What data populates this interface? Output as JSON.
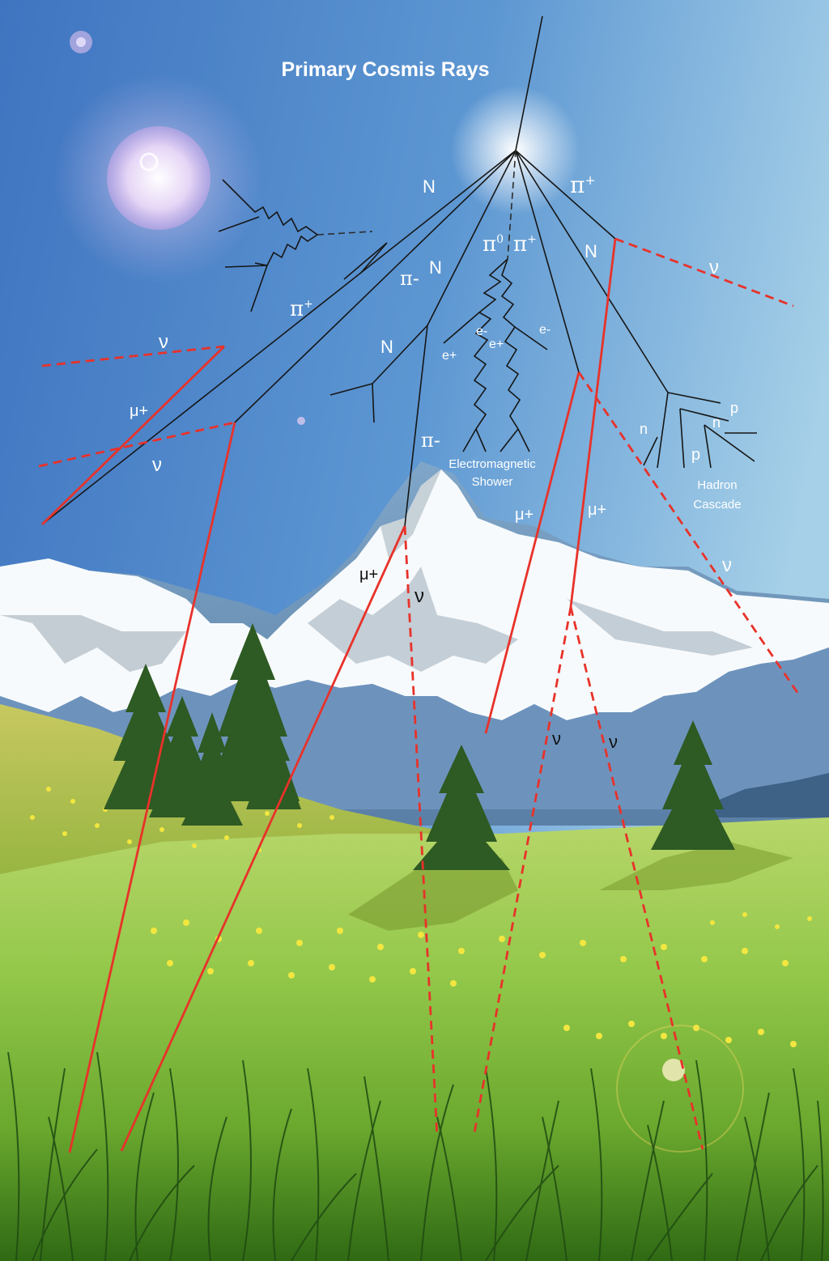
{
  "title": "Primary Cosmis Rays",
  "labels": {
    "n1": "N",
    "pi_plus_top": "π",
    "pi_plus_top_sup": "+",
    "pi0": "π",
    "pi0_sup": "0",
    "pi_plus_mid": "π",
    "pi_plus_mid_sup": "+",
    "n2": "N",
    "n3": "N",
    "pi_minus_1": "π-",
    "pi_plus_left": "π",
    "pi_plus_left_sup": "+",
    "nu_left_1": "ν",
    "nu_left_2": "ν",
    "nu_right_top": "ν",
    "mu_left": "μ+",
    "n4": "N",
    "e_plus_1": "e+",
    "e_minus_1": "e-",
    "e_plus_2": "e+",
    "e_minus_2": "e-",
    "pi_minus_2": "π-",
    "em_shower_1": "Electromagnetic",
    "em_shower_2": "Shower",
    "hadron_1": "Hadron",
    "hadron_2": "Cascade",
    "n_small_1": "n",
    "n_small_2": "n",
    "p_small_1": "p",
    "p_small_2": "p",
    "mu_mid_1": "μ+",
    "mu_mid_2": "μ+",
    "nu_right_mid": "ν",
    "mu_mountain": "μ+",
    "nu_mountain": "ν",
    "nu_low_1": "ν",
    "nu_low_2": "ν"
  },
  "colors": {
    "sky_top": "#3f79c4",
    "sky_bottom": "#9cc8e4",
    "muon_track": "#e8322a",
    "hadron_track": "#161616",
    "snow": "#ffffff",
    "grass": "#8cc63f",
    "flowers": "#f2e640"
  }
}
